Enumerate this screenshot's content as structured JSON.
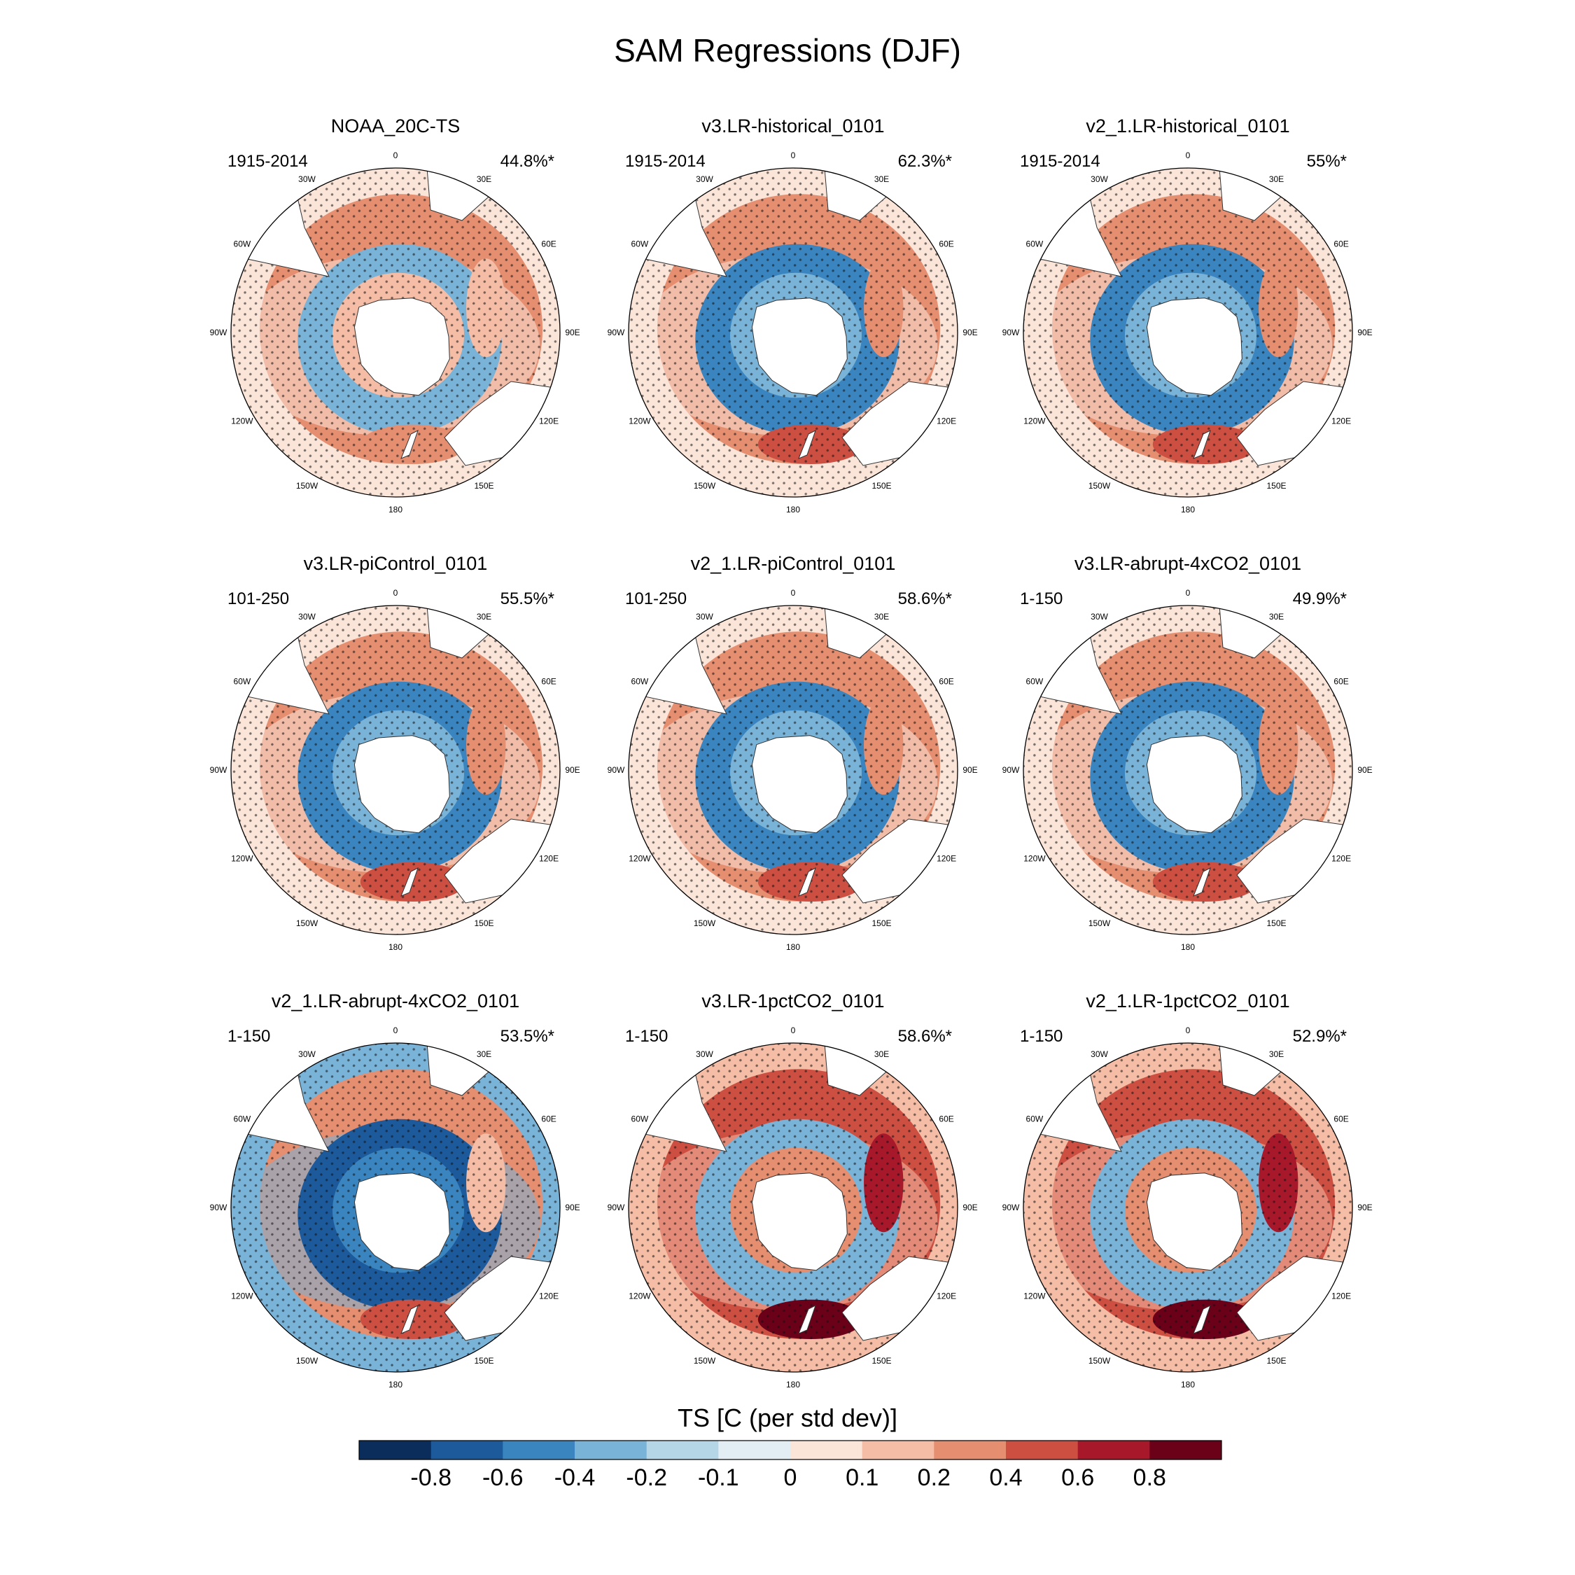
{
  "figure": {
    "title": "SAM Regressions (DJF)"
  },
  "panels": [
    {
      "title": "NOAA_20C-TS",
      "period": "1915-2014",
      "variance": "44.8%*",
      "pattern": "noaa"
    },
    {
      "title": "v3.LR-historical_0101",
      "period": "1915-2014",
      "variance": "62.3%*",
      "pattern": "neg"
    },
    {
      "title": "v2_1.LR-historical_0101",
      "period": "1915-2014",
      "variance": "55%*",
      "pattern": "neg"
    },
    {
      "title": "v3.LR-piControl_0101",
      "period": "101-250",
      "variance": "55.5%*",
      "pattern": "neg"
    },
    {
      "title": "v2_1.LR-piControl_0101",
      "period": "101-250",
      "variance": "58.6%*",
      "pattern": "neg"
    },
    {
      "title": "v3.LR-abrupt-4xCO2_0101",
      "period": "1-150",
      "variance": "49.9%*",
      "pattern": "neg"
    },
    {
      "title": "v2_1.LR-abrupt-4xCO2_0101",
      "period": "1-150",
      "variance": "53.5%*",
      "pattern": "strongneg"
    },
    {
      "title": "v3.LR-1pctCO2_0101",
      "period": "1-150",
      "variance": "58.6%*",
      "pattern": "warm"
    },
    {
      "title": "v2_1.LR-1pctCO2_0101",
      "period": "1-150",
      "variance": "52.9%*",
      "pattern": "warm"
    }
  ],
  "map_labels": [
    "0",
    "30E",
    "60E",
    "90E",
    "120E",
    "150E",
    "180",
    "150W",
    "120W",
    "90W",
    "60W",
    "30W"
  ],
  "colorbar": {
    "title": "TS [C (per std dev)]",
    "colors": [
      "#0b2d5c",
      "#1c5a9c",
      "#3a85c0",
      "#7ab3d8",
      "#b4d6e7",
      "#e3eef4",
      "#fbe4d8",
      "#f5bda5",
      "#e58e70",
      "#cc4f42",
      "#a8182b",
      "#6b0019"
    ],
    "tick_labels": [
      "-0.8",
      "-0.6",
      "-0.4",
      "-0.2",
      "-0.1",
      "0",
      "0.1",
      "0.2",
      "0.4",
      "0.6",
      "0.8"
    ]
  }
}
